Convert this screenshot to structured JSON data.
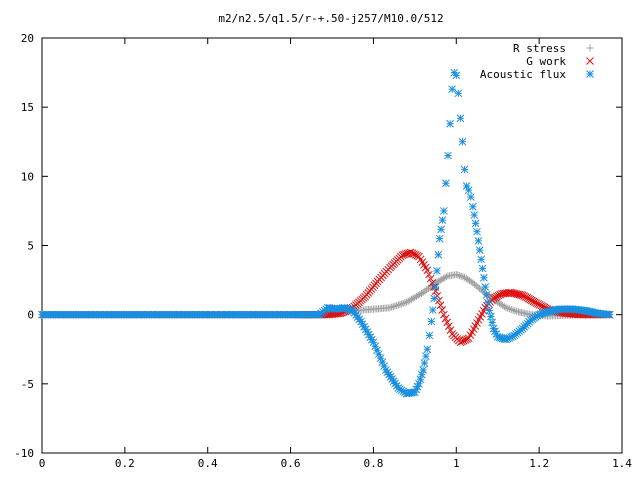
{
  "chart_data": {
    "type": "scatter",
    "title": "m2/n2.5/q1.5/r-+.50-j257/M10.0/512",
    "xlabel": "",
    "ylabel": "",
    "xlim": [
      0,
      1.4
    ],
    "ylim": [
      -10,
      20
    ],
    "x_ticks": [
      "0",
      "0.2",
      "0.4",
      "0.6",
      "0.8",
      "1",
      "1.2",
      "1.4"
    ],
    "y_ticks": [
      "-10",
      "-5",
      "0",
      "5",
      "10",
      "15",
      "20"
    ],
    "grid": false,
    "legend_position": "top-right",
    "series": [
      {
        "name": "R stress",
        "marker": "plus",
        "color": "#a0a0a0",
        "x": [
          0.0,
          0.1,
          0.2,
          0.3,
          0.4,
          0.5,
          0.6,
          0.68,
          0.72,
          0.76,
          0.8,
          0.84,
          0.88,
          0.92,
          0.95,
          0.98,
          1.0,
          1.02,
          1.04,
          1.06,
          1.08,
          1.1,
          1.12,
          1.15,
          1.18,
          1.22,
          1.26,
          1.3,
          1.34,
          1.37
        ],
        "y": [
          0,
          0,
          0,
          0,
          0,
          0,
          0,
          0,
          0.1,
          0.3,
          0.4,
          0.5,
          0.9,
          1.6,
          2.3,
          2.8,
          2.9,
          2.7,
          2.3,
          1.8,
          1.3,
          0.9,
          0.5,
          0.2,
          0.0,
          -0.1,
          -0.05,
          0,
          0,
          0
        ]
      },
      {
        "name": "G work",
        "marker": "cross",
        "color": "#dd1111",
        "x": [
          0.0,
          0.1,
          0.2,
          0.3,
          0.4,
          0.5,
          0.6,
          0.69,
          0.72,
          0.75,
          0.78,
          0.81,
          0.84,
          0.87,
          0.89,
          0.91,
          0.93,
          0.95,
          0.97,
          0.99,
          1.01,
          1.03,
          1.05,
          1.07,
          1.09,
          1.11,
          1.13,
          1.16,
          1.19,
          1.22,
          1.26,
          1.3,
          1.34,
          1.37
        ],
        "y": [
          0,
          0,
          0,
          0,
          0,
          0,
          0,
          0,
          0.1,
          0.5,
          1.3,
          2.4,
          3.4,
          4.3,
          4.5,
          4.2,
          3.2,
          1.7,
          0.0,
          -1.4,
          -2.0,
          -1.7,
          -0.6,
          0.5,
          1.2,
          1.5,
          1.6,
          1.4,
          0.9,
          0.4,
          0.1,
          0,
          0,
          0
        ]
      },
      {
        "name": "Acoustic flux",
        "marker": "star",
        "color": "#1a8fe0",
        "x": [
          0.0,
          0.1,
          0.2,
          0.3,
          0.4,
          0.5,
          0.6,
          0.67,
          0.69,
          0.71,
          0.73,
          0.75,
          0.77,
          0.8,
          0.83,
          0.86,
          0.88,
          0.9,
          0.91,
          0.92,
          0.93,
          0.94,
          0.95,
          0.96,
          0.97,
          0.975,
          0.98,
          0.985,
          0.99,
          0.995,
          1.0,
          1.005,
          1.01,
          1.015,
          1.02,
          1.025,
          1.03,
          1.035,
          1.04,
          1.05,
          1.06,
          1.07,
          1.08,
          1.09,
          1.1,
          1.12,
          1.14,
          1.16,
          1.18,
          1.2,
          1.22,
          1.25,
          1.28,
          1.31,
          1.34,
          1.37
        ],
        "y": [
          0,
          0,
          0,
          0,
          0,
          0,
          0,
          0,
          0.5,
          0.4,
          0.5,
          0.3,
          -0.5,
          -2.0,
          -4.0,
          -5.3,
          -5.7,
          -5.6,
          -5.0,
          -4.0,
          -2.5,
          -0.5,
          2.0,
          5.5,
          7.5,
          9.5,
          11.5,
          13.8,
          16.3,
          17.5,
          17.3,
          16.0,
          14.2,
          12.5,
          10.5,
          9.3,
          9.0,
          8.5,
          7.8,
          6.0,
          4.0,
          2.0,
          0.3,
          -1.0,
          -1.6,
          -1.8,
          -1.5,
          -1.0,
          -0.4,
          0.0,
          0.2,
          0.4,
          0.4,
          0.3,
          0.1,
          0
        ]
      }
    ]
  }
}
